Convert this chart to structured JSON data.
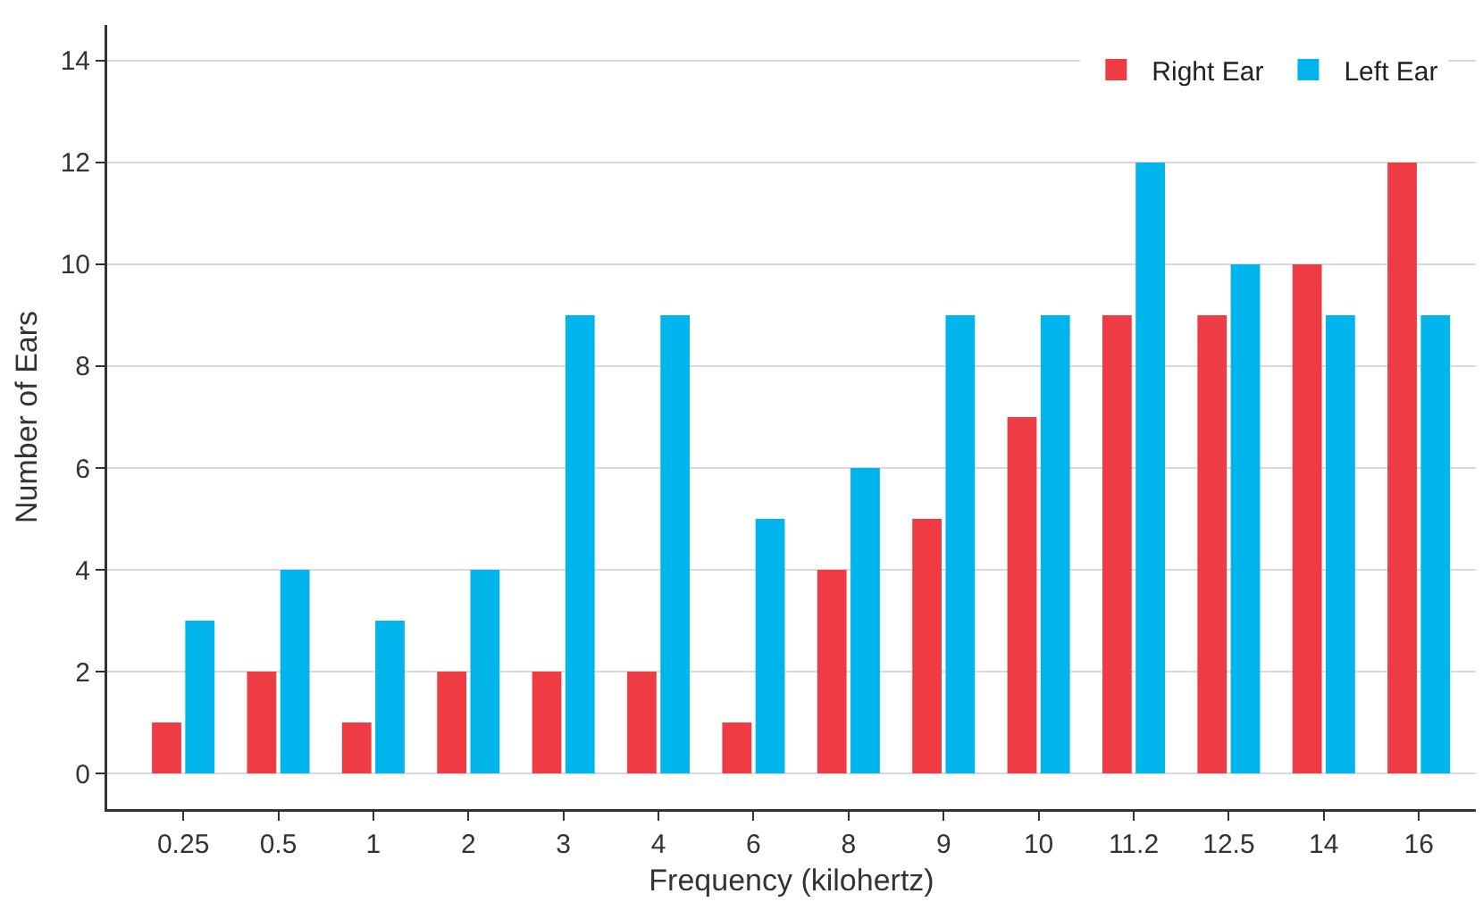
{
  "chart_data": {
    "type": "bar",
    "xlabel": "Frequency (kilohertz)",
    "ylabel": "Number of Ears",
    "categories": [
      "0.25",
      "0.5",
      "1",
      "2",
      "3",
      "4",
      "6",
      "8",
      "9",
      "10",
      "11.2",
      "12.5",
      "14",
      "16"
    ],
    "series": [
      {
        "name": "Right Ear",
        "color": "#ef3b43",
        "values": [
          1,
          2,
          1,
          2,
          2,
          2,
          1,
          4,
          5,
          7,
          9,
          9,
          10,
          12
        ]
      },
      {
        "name": "Left Ear",
        "color": "#00b5eb",
        "values": [
          3,
          4,
          3,
          4,
          9,
          9,
          5,
          6,
          9,
          9,
          12,
          10,
          9,
          9
        ]
      }
    ],
    "ylim": [
      -0.7,
      14.7
    ],
    "yticks": [
      0,
      2,
      4,
      6,
      8,
      10,
      12,
      14
    ],
    "grid": "y",
    "legend": "top right"
  }
}
